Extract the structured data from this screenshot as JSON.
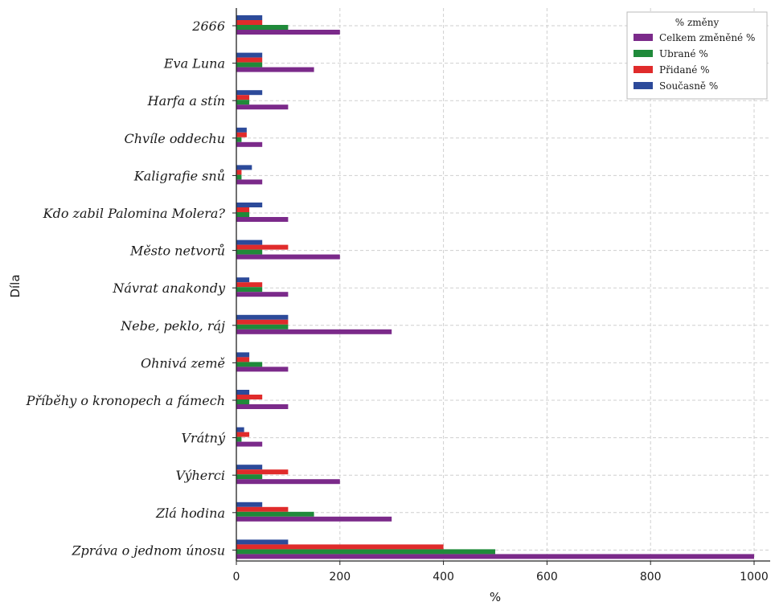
{
  "chart_data": {
    "type": "bar",
    "orientation": "horizontal",
    "categories": [
      "2666",
      "Eva Luna",
      "Harfa a stín",
      "Chvíle oddechu",
      "Kaligrafie snů",
      "Kdo zabil Palomina Molera?",
      "Město netvorů",
      "Návrat anakondy",
      "Nebe, peklo, ráj",
      "Ohnivá země",
      "Příběhy o kronopech a fámech",
      "Vrátný",
      "Výherci",
      "Zlá hodina",
      "Zpráva o jednom únosu"
    ],
    "series": [
      {
        "name": "Celkem změněné %",
        "color": "#7b2a8a",
        "values": [
          200,
          150,
          100,
          50,
          50,
          100,
          200,
          100,
          300,
          100,
          100,
          50,
          200,
          300,
          1000
        ]
      },
      {
        "name": "Ubrané %",
        "color": "#1f8a3a",
        "values": [
          100,
          50,
          25,
          10,
          10,
          25,
          50,
          50,
          100,
          50,
          25,
          10,
          50,
          150,
          500
        ]
      },
      {
        "name": "Přidané %",
        "color": "#e02b2b",
        "values": [
          50,
          50,
          25,
          20,
          10,
          25,
          100,
          50,
          100,
          25,
          50,
          25,
          100,
          100,
          400
        ]
      },
      {
        "name": "Současně %",
        "color": "#2c4a9a",
        "values": [
          50,
          50,
          50,
          20,
          30,
          50,
          50,
          25,
          100,
          25,
          25,
          15,
          50,
          50,
          100
        ]
      }
    ],
    "xlabel": "%",
    "ylabel": "Díla",
    "xlim": [
      0,
      1000
    ],
    "xticks": [
      0,
      200,
      400,
      600,
      800,
      1000
    ],
    "legend": {
      "title": "% změny",
      "position": "top-right"
    },
    "grid": true
  }
}
